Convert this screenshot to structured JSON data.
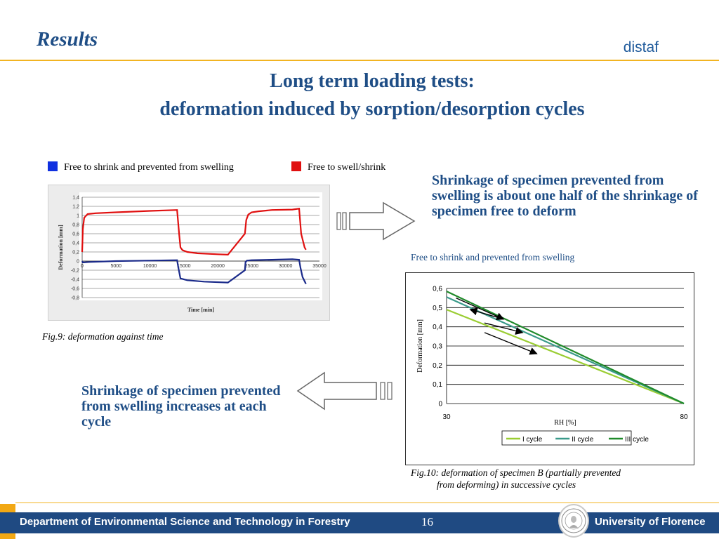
{
  "header": {
    "section_title": "Results",
    "brand": "distaf",
    "title_line1": "Long term loading tests:",
    "title_line2": "deformation induced by sorption/desorption cycles"
  },
  "legend": {
    "items": [
      {
        "label": "Free to shrink and prevented from swelling",
        "color": "#1030e0"
      },
      {
        "label": "Free to swell/shrink",
        "color": "#e01010"
      }
    ]
  },
  "callouts": {
    "top_right": "Shrinkage of specimen prevented from swelling is about one half of the shrinkage of specimen free to deform",
    "bottom_left": "Shrinkage of specimen prevented from swelling increases at each cycle"
  },
  "captions": {
    "fig9": "Fig.9: deformation against time",
    "fig10_line1": "Fig.10: deformation of specimen B (partially prevented",
    "fig10_line2": "from deforming) in successive cycles",
    "chart2_label": "Free to shrink and prevented from swelling"
  },
  "footer": {
    "department": "Department of Environmental Science and Technology in Forestry",
    "page_number": "16",
    "university": "University of Florence"
  },
  "chart_data": [
    {
      "type": "line",
      "xlabel": "Time [min]",
      "ylabel": "Deformation [mm]",
      "xlim": [
        0,
        35000
      ],
      "ylim": [
        -0.8,
        1.4
      ],
      "xticks": [
        0,
        5000,
        10000,
        15000,
        20000,
        25000,
        30000,
        35000
      ],
      "yticks": [
        1.4,
        1.2,
        1,
        0.8,
        0.6,
        0.4,
        0.2,
        0,
        -0.2,
        -0.4,
        -0.6,
        -0.8
      ],
      "grid": true,
      "series": [
        {
          "color": "#e01010",
          "x": [
            0,
            100,
            300,
            800,
            2000,
            5000,
            10000,
            14000,
            14300,
            14500,
            14800,
            15500,
            17000,
            20000,
            21500,
            24000,
            24200,
            24500,
            25000,
            26000,
            28000,
            31000,
            32000,
            32300,
            32800,
            33000
          ],
          "y": [
            0.2,
            0.7,
            0.95,
            1.03,
            1.05,
            1.07,
            1.1,
            1.12,
            0.6,
            0.3,
            0.24,
            0.2,
            0.17,
            0.15,
            0.14,
            0.6,
            0.9,
            1.02,
            1.07,
            1.09,
            1.12,
            1.13,
            1.15,
            0.6,
            0.3,
            0.25
          ]
        },
        {
          "color": "#1a2a8a",
          "x": [
            0,
            100,
            1000,
            5000,
            10000,
            14000,
            14200,
            14500,
            15500,
            18000,
            21500,
            24000,
            24100,
            24300,
            25000,
            28000,
            31000,
            32000,
            32200,
            32500,
            33000
          ],
          "y": [
            0,
            -0.03,
            -0.02,
            0,
            0.01,
            0.02,
            -0.15,
            -0.38,
            -0.42,
            -0.45,
            -0.47,
            -0.2,
            -0.02,
            0.01,
            0.02,
            0.03,
            0.04,
            0.03,
            -0.15,
            -0.35,
            -0.5
          ]
        }
      ]
    },
    {
      "type": "line",
      "xlabel": "RH [%]",
      "ylabel": "Deformation [mm]",
      "xlim": [
        30,
        80
      ],
      "ylim": [
        0,
        0.6
      ],
      "xticks": [
        30,
        80
      ],
      "yticks": [
        0,
        0.1,
        0.2,
        0.3,
        0.4,
        0.5,
        0.6
      ],
      "grid": true,
      "legend_position": "bottom",
      "series": [
        {
          "name": "I cycle",
          "color": "#9acd32",
          "x": [
            30,
            80
          ],
          "y": [
            0.49,
            0
          ]
        },
        {
          "name": "II cycle",
          "color": "#3a9a8a",
          "x": [
            30,
            80
          ],
          "y": [
            0.555,
            0
          ]
        },
        {
          "name": "III cycle",
          "color": "#1f8a2a",
          "x": [
            30,
            80
          ],
          "y": [
            0.585,
            0
          ]
        }
      ],
      "annotations": [
        {
          "from": [
            32,
            0.55
          ],
          "to": [
            42,
            0.44
          ]
        },
        {
          "from": [
            42,
            0.44
          ],
          "to": [
            35,
            0.49
          ]
        },
        {
          "from": [
            38,
            0.42
          ],
          "to": [
            46,
            0.37
          ]
        },
        {
          "from": [
            38,
            0.37
          ],
          "to": [
            49,
            0.26
          ]
        }
      ]
    }
  ]
}
